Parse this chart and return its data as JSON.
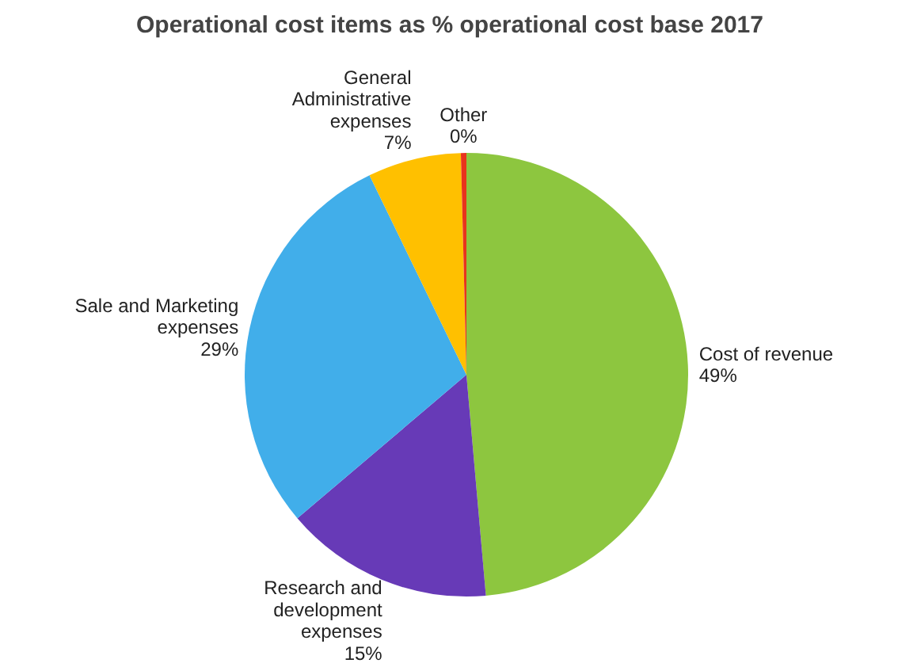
{
  "chart_data": {
    "type": "pie",
    "title": "Operational cost items as % operational cost base 2017",
    "categories": [
      "Cost of revenue",
      "Research and development expenses",
      "Sale and Marketing expenses",
      "General Administrative expenses",
      "Other"
    ],
    "values": [
      48.6,
      15.2,
      29.0,
      6.8,
      0.4
    ],
    "value_labels": [
      "49%",
      "15%",
      "29%",
      "7%",
      "0%"
    ],
    "colors": [
      "#8dc63f",
      "#673ab7",
      "#41aeea",
      "#ffc000",
      "#e8341c"
    ]
  }
}
